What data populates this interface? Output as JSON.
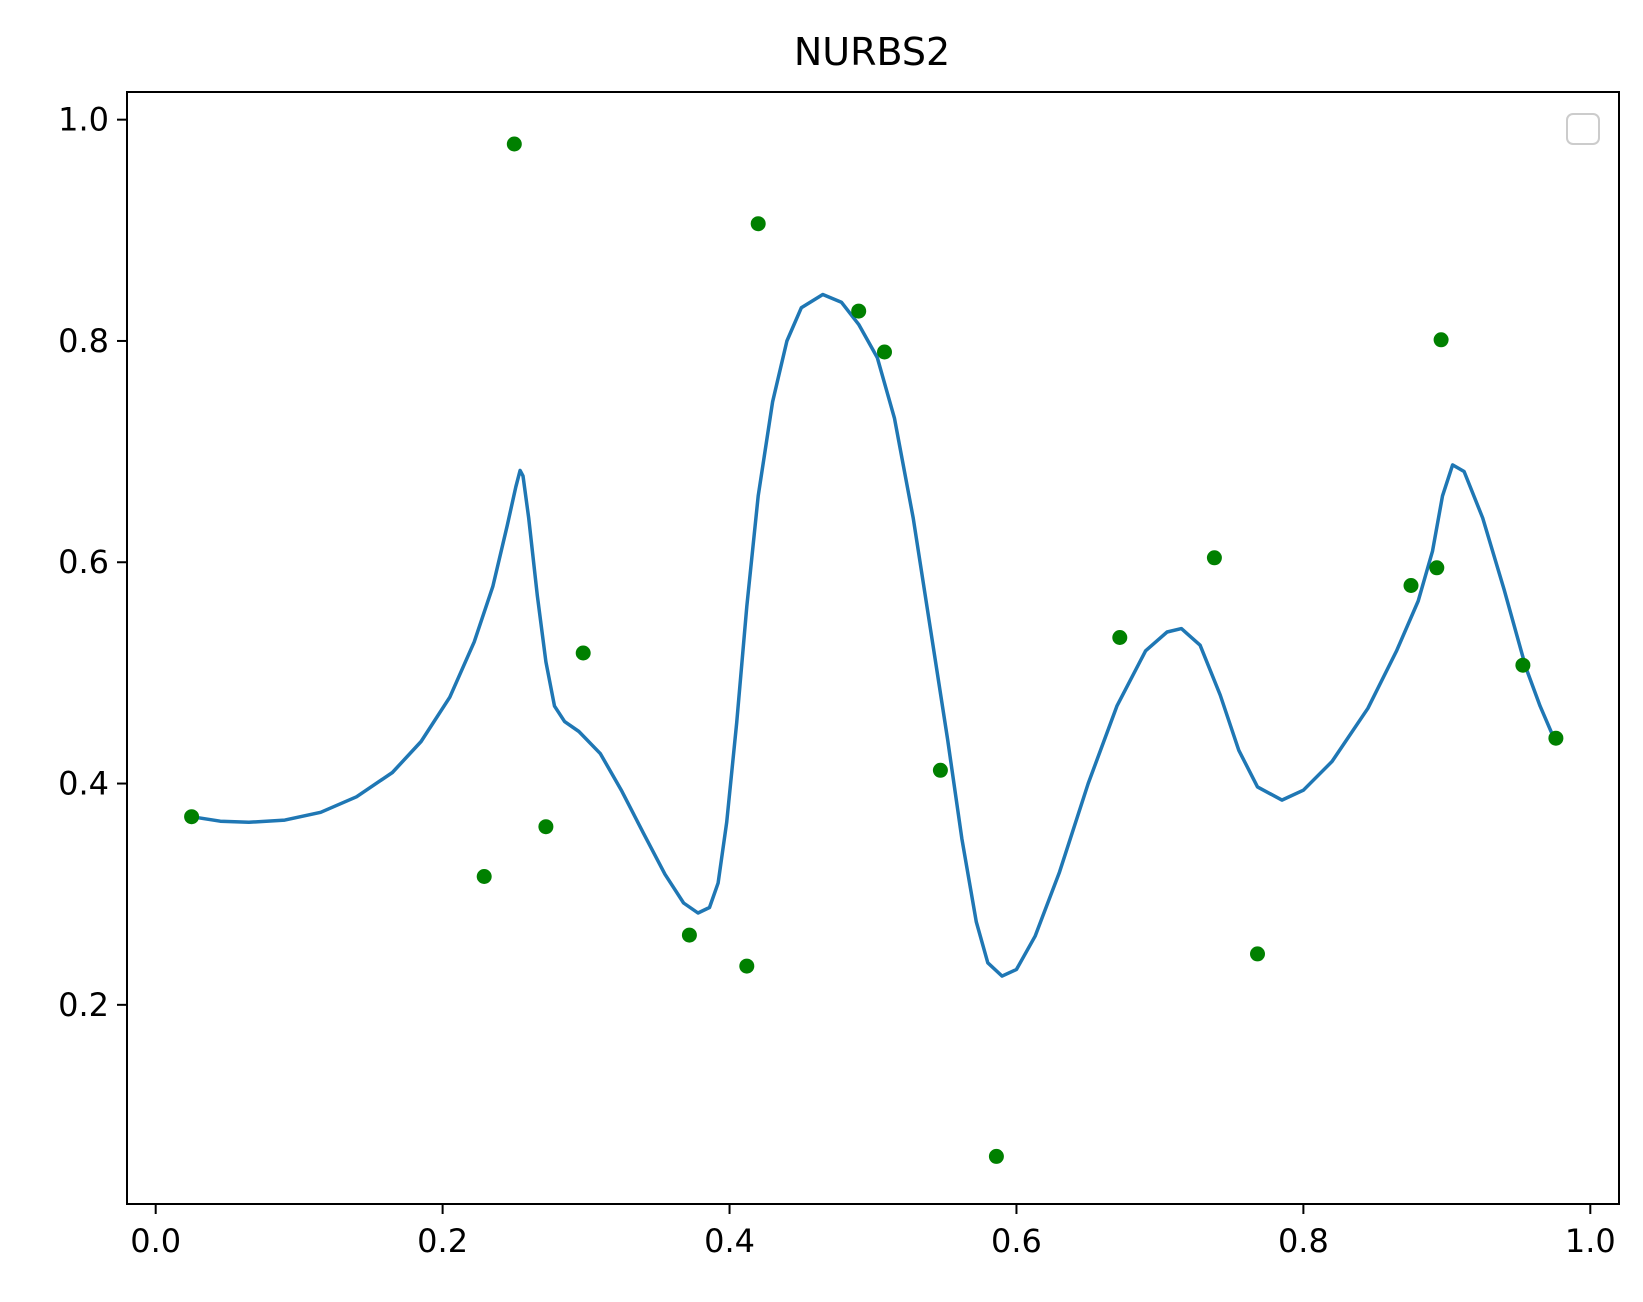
{
  "chart_data": {
    "type": "scatter",
    "title": "NURBS2",
    "xlabel": "",
    "ylabel": "",
    "xlim": [
      -0.02,
      1.02
    ],
    "ylim": [
      0.02,
      1.025
    ],
    "x_ticks": [
      0.0,
      0.2,
      0.4,
      0.6,
      0.8,
      1.0
    ],
    "x_tick_labels": [
      "0.0",
      "0.2",
      "0.4",
      "0.6",
      "0.8",
      "1.0"
    ],
    "y_ticks": [
      0.2,
      0.4,
      0.6,
      0.8,
      1.0
    ],
    "y_tick_labels": [
      "0.2",
      "0.4",
      "0.6",
      "0.8",
      "1.0"
    ],
    "grid": false,
    "legend": {
      "placement": "upper-right",
      "entries": []
    },
    "colors": {
      "curve": "#1f77b4",
      "points": "#008000",
      "axes": "#000000",
      "legend_border": "#cccccc"
    },
    "series": [
      {
        "kind": "line",
        "points": [
          [
            0.025,
            0.37
          ],
          [
            0.045,
            0.366
          ],
          [
            0.065,
            0.365
          ],
          [
            0.09,
            0.367
          ],
          [
            0.115,
            0.374
          ],
          [
            0.14,
            0.388
          ],
          [
            0.165,
            0.41
          ],
          [
            0.185,
            0.438
          ],
          [
            0.205,
            0.478
          ],
          [
            0.222,
            0.528
          ],
          [
            0.235,
            0.578
          ],
          [
            0.245,
            0.633
          ],
          [
            0.251,
            0.668
          ],
          [
            0.254,
            0.683
          ],
          [
            0.256,
            0.678
          ],
          [
            0.26,
            0.64
          ],
          [
            0.266,
            0.57
          ],
          [
            0.272,
            0.51
          ],
          [
            0.278,
            0.47
          ],
          [
            0.285,
            0.456
          ],
          [
            0.295,
            0.447
          ],
          [
            0.31,
            0.427
          ],
          [
            0.325,
            0.393
          ],
          [
            0.34,
            0.355
          ],
          [
            0.355,
            0.318
          ],
          [
            0.368,
            0.292
          ],
          [
            0.378,
            0.283
          ],
          [
            0.386,
            0.288
          ],
          [
            0.392,
            0.31
          ],
          [
            0.398,
            0.365
          ],
          [
            0.405,
            0.455
          ],
          [
            0.412,
            0.56
          ],
          [
            0.42,
            0.66
          ],
          [
            0.43,
            0.745
          ],
          [
            0.44,
            0.8
          ],
          [
            0.45,
            0.83
          ],
          [
            0.465,
            0.842
          ],
          [
            0.478,
            0.835
          ],
          [
            0.49,
            0.815
          ],
          [
            0.503,
            0.785
          ],
          [
            0.515,
            0.73
          ],
          [
            0.528,
            0.64
          ],
          [
            0.54,
            0.54
          ],
          [
            0.552,
            0.44
          ],
          [
            0.562,
            0.35
          ],
          [
            0.572,
            0.275
          ],
          [
            0.58,
            0.238
          ],
          [
            0.59,
            0.226
          ],
          [
            0.6,
            0.232
          ],
          [
            0.613,
            0.262
          ],
          [
            0.63,
            0.32
          ],
          [
            0.65,
            0.4
          ],
          [
            0.67,
            0.47
          ],
          [
            0.69,
            0.52
          ],
          [
            0.705,
            0.537
          ],
          [
            0.715,
            0.54
          ],
          [
            0.728,
            0.525
          ],
          [
            0.742,
            0.48
          ],
          [
            0.755,
            0.43
          ],
          [
            0.768,
            0.397
          ],
          [
            0.785,
            0.385
          ],
          [
            0.8,
            0.394
          ],
          [
            0.82,
            0.42
          ],
          [
            0.845,
            0.468
          ],
          [
            0.865,
            0.52
          ],
          [
            0.88,
            0.565
          ],
          [
            0.89,
            0.61
          ],
          [
            0.897,
            0.66
          ],
          [
            0.904,
            0.688
          ],
          [
            0.912,
            0.682
          ],
          [
            0.925,
            0.64
          ],
          [
            0.94,
            0.575
          ],
          [
            0.955,
            0.505
          ],
          [
            0.965,
            0.47
          ],
          [
            0.975,
            0.44
          ]
        ]
      },
      {
        "kind": "scatter",
        "points": [
          [
            0.025,
            0.37
          ],
          [
            0.229,
            0.316
          ],
          [
            0.25,
            0.978
          ],
          [
            0.272,
            0.361
          ],
          [
            0.298,
            0.518
          ],
          [
            0.372,
            0.263
          ],
          [
            0.412,
            0.235
          ],
          [
            0.42,
            0.906
          ],
          [
            0.49,
            0.827
          ],
          [
            0.508,
            0.79
          ],
          [
            0.547,
            0.412
          ],
          [
            0.586,
            0.063
          ],
          [
            0.672,
            0.532
          ],
          [
            0.738,
            0.604
          ],
          [
            0.768,
            0.246
          ],
          [
            0.875,
            0.579
          ],
          [
            0.893,
            0.595
          ],
          [
            0.896,
            0.801
          ],
          [
            0.953,
            0.507
          ],
          [
            0.976,
            0.441
          ]
        ]
      }
    ]
  }
}
